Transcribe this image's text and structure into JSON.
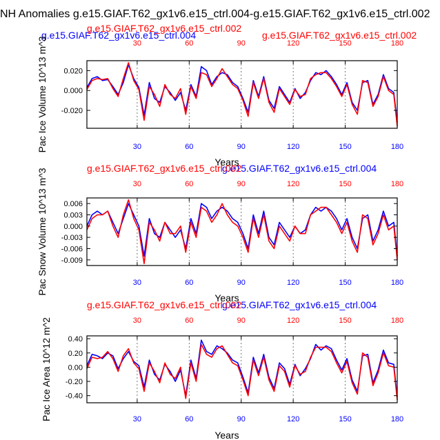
{
  "figure": {
    "title": "NH Anomalies g.e15.GIAF.T62_gx1v6.e15_ctrl.004-g.e15.GIAF.T62_gx1v6.e15_ctrl.002",
    "colors": {
      "case_a": "#0000ff",
      "case_b": "#ff0000",
      "axis": "#000000",
      "grid": "#555555"
    }
  },
  "chart_data": [
    {
      "type": "line",
      "case_a_label": "g.e15.GIAF.T62_gx1v6.e15_ctrl.004",
      "case_b_label": "g.e15.GIAF.T62_gx1v6.e15_ctrl.002",
      "ylabel": "Pac Ice Volume 10^13 m^3",
      "xlabel": "Years",
      "xlim": [
        1,
        180
      ],
      "ylim": [
        -0.038,
        0.03
      ],
      "yticks": [
        0.02,
        0.0,
        -0.02
      ],
      "ytick_labels": [
        "0.020",
        "0.000",
        "-0.020"
      ],
      "xticks_bottom": [
        30,
        60,
        90,
        120,
        150,
        180
      ],
      "xticks_top": [
        30,
        60,
        90,
        120,
        150,
        180
      ],
      "vlines": [
        30,
        60,
        90,
        120,
        150
      ],
      "series": [
        {
          "name": "g.e15.GIAF.T62_gx1v6.e15_ctrl.004",
          "color": "#0000ff",
          "x": [
            1,
            4,
            7,
            10,
            13,
            16,
            19,
            22,
            25,
            28,
            31,
            34,
            37,
            40,
            43,
            46,
            49,
            52,
            55,
            58,
            61,
            64,
            67,
            70,
            73,
            76,
            79,
            82,
            85,
            88,
            91,
            94,
            97,
            100,
            103,
            106,
            109,
            112,
            115,
            118,
            121,
            124,
            127,
            130,
            133,
            136,
            139,
            142,
            145,
            148,
            151,
            154,
            157,
            160,
            163,
            166,
            169,
            172,
            175,
            178,
            180
          ],
          "y": [
            0.003,
            0.012,
            0.014,
            0.01,
            0.011,
            0.004,
            -0.004,
            0.008,
            0.026,
            0.012,
            0.003,
            -0.025,
            0.008,
            -0.008,
            -0.012,
            0.004,
            -0.002,
            -0.01,
            -0.002,
            -0.02,
            0.006,
            -0.006,
            0.024,
            0.02,
            0.006,
            0.014,
            0.018,
            0.016,
            0.008,
            0.004,
            -0.008,
            -0.022,
            0.01,
            -0.006,
            0.014,
            -0.01,
            -0.018,
            0.004,
            -0.004,
            -0.012,
            0.002,
            -0.008,
            -0.002,
            0.01,
            0.018,
            0.016,
            0.02,
            0.014,
            0.006,
            -0.004,
            0.008,
            -0.012,
            -0.02,
            0.008,
            0.01,
            -0.014,
            -0.004,
            0.016,
            0.002,
            -0.002,
            -0.032
          ]
        },
        {
          "name": "g.e15.GIAF.T62_gx1v6.e15_ctrl.002",
          "color": "#ff0000",
          "x": [
            1,
            4,
            7,
            10,
            13,
            16,
            19,
            22,
            25,
            28,
            31,
            34,
            37,
            40,
            43,
            46,
            49,
            52,
            55,
            58,
            61,
            64,
            67,
            70,
            73,
            76,
            79,
            82,
            85,
            88,
            91,
            94,
            97,
            100,
            103,
            106,
            109,
            112,
            115,
            118,
            121,
            124,
            127,
            130,
            133,
            136,
            139,
            142,
            145,
            148,
            151,
            154,
            157,
            160,
            163,
            166,
            169,
            172,
            175,
            178,
            180
          ],
          "y": [
            0.001,
            0.01,
            0.012,
            0.011,
            0.012,
            0.002,
            -0.006,
            0.012,
            0.028,
            0.01,
            0.001,
            -0.03,
            0.004,
            -0.004,
            -0.016,
            0.006,
            -0.004,
            -0.008,
            0.002,
            -0.024,
            0.004,
            -0.008,
            0.018,
            0.016,
            0.004,
            0.012,
            0.022,
            0.014,
            0.006,
            0.002,
            -0.01,
            -0.026,
            0.008,
            -0.008,
            0.012,
            -0.012,
            -0.022,
            0.002,
            -0.006,
            -0.014,
            0.001,
            -0.006,
            -0.004,
            0.012,
            0.016,
            0.018,
            0.018,
            0.012,
            0.004,
            -0.006,
            0.006,
            -0.014,
            -0.024,
            0.01,
            0.008,
            -0.016,
            -0.006,
            0.014,
            0.0,
            -0.004,
            -0.036
          ]
        }
      ]
    },
    {
      "type": "line",
      "case_a_label": "g.e15.GIAF.T62_gx1v6.e15_ctrl.004",
      "case_b_label": "g.e15.GIAF.T62_gx1v6.e15_ctrl.002",
      "ylabel": "Pac Snow Volume 10^13 m^3",
      "xlabel": "Years",
      "xlim": [
        1,
        180
      ],
      "ylim": [
        -0.0105,
        0.0075
      ],
      "yticks": [
        0.006,
        0.003,
        0.0,
        -0.003,
        -0.006,
        -0.009
      ],
      "ytick_labels": [
        "0.006",
        "0.003",
        "0.000",
        "-0.003",
        "-0.006",
        "-0.009"
      ],
      "xticks_bottom": [
        30,
        60,
        90,
        120,
        150,
        180
      ],
      "xticks_top": [
        30,
        60,
        90,
        120,
        150,
        180
      ],
      "vlines": [
        30,
        60,
        90,
        120,
        150
      ],
      "series": [
        {
          "name": "g.e15.GIAF.T62_gx1v6.e15_ctrl.004",
          "color": "#0000ff",
          "x": [
            1,
            4,
            7,
            10,
            13,
            16,
            19,
            22,
            25,
            28,
            31,
            34,
            37,
            40,
            43,
            46,
            49,
            52,
            55,
            58,
            61,
            64,
            67,
            70,
            73,
            76,
            79,
            82,
            85,
            88,
            91,
            94,
            97,
            100,
            103,
            106,
            109,
            112,
            115,
            118,
            121,
            124,
            127,
            130,
            133,
            136,
            139,
            142,
            145,
            148,
            151,
            154,
            157,
            160,
            163,
            166,
            169,
            172,
            175,
            178,
            180
          ],
          "y": [
            0.0,
            0.003,
            0.004,
            0.003,
            0.004,
            0.001,
            -0.002,
            0.002,
            0.006,
            0.003,
            0.0,
            -0.008,
            0.002,
            -0.002,
            -0.003,
            0.001,
            -0.001,
            -0.003,
            -0.001,
            -0.006,
            0.002,
            -0.002,
            0.006,
            0.005,
            0.002,
            0.004,
            0.005,
            0.004,
            0.002,
            0.001,
            -0.002,
            -0.006,
            0.003,
            -0.002,
            0.004,
            -0.003,
            -0.005,
            0.001,
            -0.001,
            -0.003,
            0.0,
            -0.002,
            -0.001,
            0.003,
            0.005,
            0.004,
            0.005,
            0.004,
            0.002,
            -0.001,
            0.002,
            -0.003,
            -0.006,
            0.002,
            0.003,
            -0.004,
            -0.001,
            0.004,
            0.0,
            0.001,
            -0.008
          ]
        },
        {
          "name": "g.e15.GIAF.T62_gx1v6.e15_ctrl.002",
          "color": "#ff0000",
          "x": [
            1,
            4,
            7,
            10,
            13,
            16,
            19,
            22,
            25,
            28,
            31,
            34,
            37,
            40,
            43,
            46,
            49,
            52,
            55,
            58,
            61,
            64,
            67,
            70,
            73,
            76,
            79,
            82,
            85,
            88,
            91,
            94,
            97,
            100,
            103,
            106,
            109,
            112,
            115,
            118,
            121,
            124,
            127,
            130,
            133,
            136,
            139,
            142,
            145,
            148,
            151,
            154,
            157,
            160,
            163,
            166,
            169,
            172,
            175,
            178,
            180
          ],
          "y": [
            -0.001,
            0.002,
            0.003,
            0.003,
            0.004,
            0.0,
            -0.003,
            0.003,
            0.007,
            0.002,
            -0.001,
            -0.01,
            0.001,
            -0.001,
            -0.004,
            0.001,
            -0.002,
            -0.002,
            0.0,
            -0.007,
            0.001,
            -0.003,
            0.005,
            0.004,
            0.001,
            0.003,
            0.006,
            0.003,
            0.001,
            0.0,
            -0.003,
            -0.007,
            0.002,
            -0.003,
            0.003,
            -0.004,
            -0.006,
            0.0,
            -0.002,
            -0.004,
            0.0,
            -0.002,
            -0.002,
            0.003,
            0.004,
            0.005,
            0.005,
            0.003,
            0.001,
            -0.002,
            0.001,
            -0.004,
            -0.007,
            0.003,
            0.002,
            -0.005,
            -0.002,
            0.003,
            -0.001,
            0.0,
            -0.009
          ]
        }
      ]
    },
    {
      "type": "line",
      "case_a_label": "g.e15.GIAF.T62_gx1v6.e15_ctrl.004",
      "case_b_label": "g.e15.GIAF.T62_gx1v6.e15_ctrl.002",
      "ylabel": "Pac Ice Area 10^12 m^2",
      "xlabel": "Years",
      "xlim": [
        1,
        180
      ],
      "ylim": [
        -0.5,
        0.44
      ],
      "yticks": [
        0.4,
        0.2,
        0.0,
        -0.2,
        -0.4
      ],
      "ytick_labels": [
        "0.40",
        "0.20",
        "0.00",
        "-0.20",
        "-0.40"
      ],
      "xticks_bottom": [
        30,
        60,
        90,
        120,
        150,
        180
      ],
      "xticks_top": [
        30,
        60,
        90,
        120,
        150,
        180
      ],
      "vlines": [
        30,
        60,
        90,
        120,
        150
      ],
      "series": [
        {
          "name": "g.e15.GIAF.T62_gx1v6.e15_ctrl.004",
          "color": "#0000ff",
          "x": [
            1,
            4,
            7,
            10,
            13,
            16,
            19,
            22,
            25,
            28,
            31,
            34,
            37,
            40,
            43,
            46,
            49,
            52,
            55,
            58,
            61,
            64,
            67,
            70,
            73,
            76,
            79,
            82,
            85,
            88,
            91,
            94,
            97,
            100,
            103,
            106,
            109,
            112,
            115,
            118,
            121,
            124,
            127,
            130,
            133,
            136,
            139,
            142,
            145,
            148,
            151,
            154,
            157,
            160,
            163,
            166,
            169,
            172,
            175,
            178,
            180
          ],
          "y": [
            0.02,
            0.18,
            0.16,
            0.12,
            0.2,
            0.16,
            -0.02,
            0.12,
            0.22,
            0.08,
            0.02,
            -0.28,
            0.1,
            -0.1,
            -0.18,
            0.04,
            -0.06,
            -0.2,
            -0.04,
            -0.4,
            0.1,
            -0.16,
            0.38,
            0.22,
            0.18,
            0.3,
            0.26,
            0.2,
            0.1,
            0.06,
            -0.14,
            -0.36,
            0.14,
            -0.08,
            0.18,
            -0.14,
            -0.3,
            0.06,
            -0.02,
            -0.24,
            0.04,
            -0.12,
            -0.02,
            0.12,
            0.32,
            0.24,
            0.3,
            0.26,
            0.1,
            -0.04,
            0.12,
            -0.18,
            -0.34,
            0.16,
            0.18,
            -0.22,
            -0.04,
            0.24,
            0.06,
            0.04,
            -0.42
          ]
        },
        {
          "name": "g.e15.GIAF.T62_gx1v6.e15_ctrl.002",
          "color": "#ff0000",
          "x": [
            1,
            4,
            7,
            10,
            13,
            16,
            19,
            22,
            25,
            28,
            31,
            34,
            37,
            40,
            43,
            46,
            49,
            52,
            55,
            58,
            61,
            64,
            67,
            70,
            73,
            76,
            79,
            82,
            85,
            88,
            91,
            94,
            97,
            100,
            103,
            106,
            109,
            112,
            115,
            118,
            121,
            124,
            127,
            130,
            133,
            136,
            139,
            142,
            145,
            148,
            151,
            154,
            157,
            160,
            163,
            166,
            169,
            172,
            175,
            178,
            180
          ],
          "y": [
            -0.02,
            0.14,
            0.12,
            0.14,
            0.22,
            0.12,
            -0.06,
            0.16,
            0.26,
            0.06,
            -0.02,
            -0.34,
            0.06,
            -0.06,
            -0.22,
            0.06,
            -0.1,
            -0.16,
            0.0,
            -0.44,
            0.06,
            -0.2,
            0.32,
            0.18,
            0.14,
            0.26,
            0.3,
            0.18,
            0.06,
            0.02,
            -0.18,
            -0.4,
            0.1,
            -0.12,
            0.14,
            -0.18,
            -0.34,
            0.02,
            -0.06,
            -0.28,
            0.02,
            -0.1,
            -0.06,
            0.14,
            0.28,
            0.28,
            0.28,
            0.22,
            0.06,
            -0.08,
            0.08,
            -0.22,
            -0.38,
            0.2,
            0.14,
            -0.26,
            -0.08,
            0.2,
            0.02,
            0.0,
            -0.46
          ]
        }
      ]
    }
  ]
}
